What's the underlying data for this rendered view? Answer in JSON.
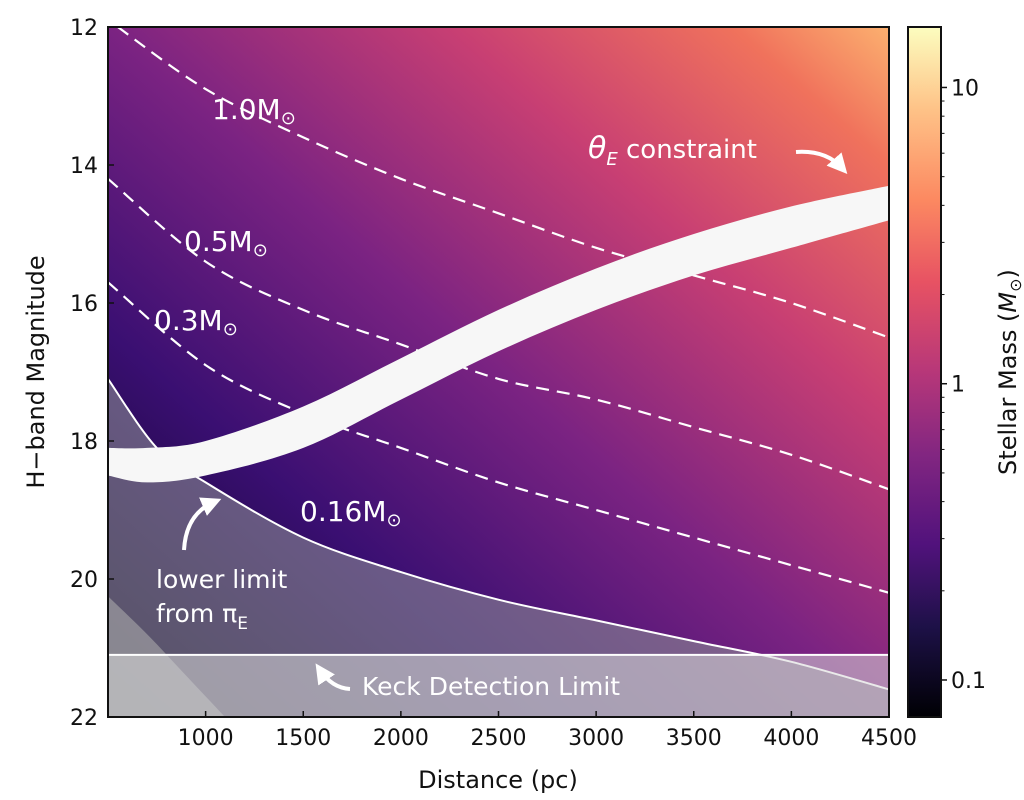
{
  "chart_data": {
    "type": "heatmap",
    "xlabel": "Distance (pc)",
    "ylabel": "H−band Magnitude",
    "xlim": [
      500,
      4500
    ],
    "ylim": [
      22,
      12
    ],
    "y_inverted": true,
    "x_ticks": [
      1000,
      1500,
      2000,
      2500,
      3000,
      3500,
      4000,
      4500
    ],
    "y_ticks": [
      12,
      14,
      16,
      18,
      20,
      22
    ],
    "colorbar": {
      "label": "Stellar Mass (",
      "label_unit": "M",
      "label_close": ")",
      "scale": "log",
      "range": [
        0.075,
        16
      ],
      "ticks": [
        {
          "value": 0.1,
          "label": "0.1"
        },
        {
          "value": 1,
          "label": "1"
        },
        {
          "value": 10,
          "label": "10"
        }
      ],
      "colormap": "magma"
    },
    "mass_contours": [
      {
        "label": "1.0M",
        "mass": 1.0,
        "points": [
          [
            550,
            12.0
          ],
          [
            1000,
            12.9
          ],
          [
            1500,
            13.6
          ],
          [
            2000,
            14.2
          ],
          [
            2500,
            14.7
          ],
          [
            3000,
            15.2
          ],
          [
            3500,
            15.6
          ],
          [
            4000,
            16.0
          ],
          [
            4500,
            16.5
          ]
        ]
      },
      {
        "label": "0.5M",
        "mass": 0.5,
        "points": [
          [
            500,
            14.2
          ],
          [
            1000,
            15.4
          ],
          [
            1500,
            16.1
          ],
          [
            2000,
            16.6
          ],
          [
            2500,
            17.1
          ],
          [
            3000,
            17.4
          ],
          [
            3500,
            17.8
          ],
          [
            4000,
            18.2
          ],
          [
            4500,
            18.7
          ]
        ]
      },
      {
        "label": "0.3M",
        "mass": 0.3,
        "points": [
          [
            500,
            15.7
          ],
          [
            1000,
            16.9
          ],
          [
            1500,
            17.6
          ],
          [
            2000,
            18.1
          ],
          [
            2500,
            18.6
          ],
          [
            3000,
            19.0
          ],
          [
            3500,
            19.4
          ],
          [
            4000,
            19.8
          ],
          [
            4500,
            20.2
          ]
        ]
      },
      {
        "label": "0.16M",
        "mass": 0.16,
        "points": [
          [
            500,
            17.1
          ],
          [
            750,
            18.1
          ],
          [
            1000,
            18.6
          ],
          [
            1500,
            19.4
          ],
          [
            2000,
            19.9
          ],
          [
            2500,
            20.3
          ],
          [
            3000,
            20.6
          ],
          [
            3500,
            20.9
          ],
          [
            4000,
            21.2
          ],
          [
            4500,
            21.6
          ]
        ]
      }
    ],
    "theta_e_band": {
      "upper": [
        [
          500,
          18.1
        ],
        [
          700,
          18.1
        ],
        [
          1000,
          18.0
        ],
        [
          1500,
          17.5
        ],
        [
          2000,
          16.8
        ],
        [
          2500,
          16.1
        ],
        [
          3000,
          15.5
        ],
        [
          3500,
          15.0
        ],
        [
          4000,
          14.6
        ],
        [
          4500,
          14.3
        ]
      ],
      "lower": [
        [
          500,
          18.5
        ],
        [
          700,
          18.6
        ],
        [
          1000,
          18.5
        ],
        [
          1500,
          18.1
        ],
        [
          2000,
          17.4
        ],
        [
          2500,
          16.7
        ],
        [
          3000,
          16.1
        ],
        [
          3500,
          15.6
        ],
        [
          4000,
          15.2
        ],
        [
          4500,
          14.8
        ]
      ]
    },
    "keck_detection_limit": 21.1,
    "steep_region_edge": [
      [
        500,
        20.25
      ],
      [
        700,
        20.8
      ],
      [
        900,
        21.4
      ],
      [
        1100,
        22.0
      ]
    ],
    "annotations": [
      {
        "text": "θ",
        "sub": "E",
        "text_after": " constraint"
      },
      {
        "text": "lower limit"
      },
      {
        "text": "from π",
        "sub": "E"
      },
      {
        "text": "Keck Detection Limit"
      }
    ],
    "mass_symbol": "⊙",
    "grid": false
  }
}
